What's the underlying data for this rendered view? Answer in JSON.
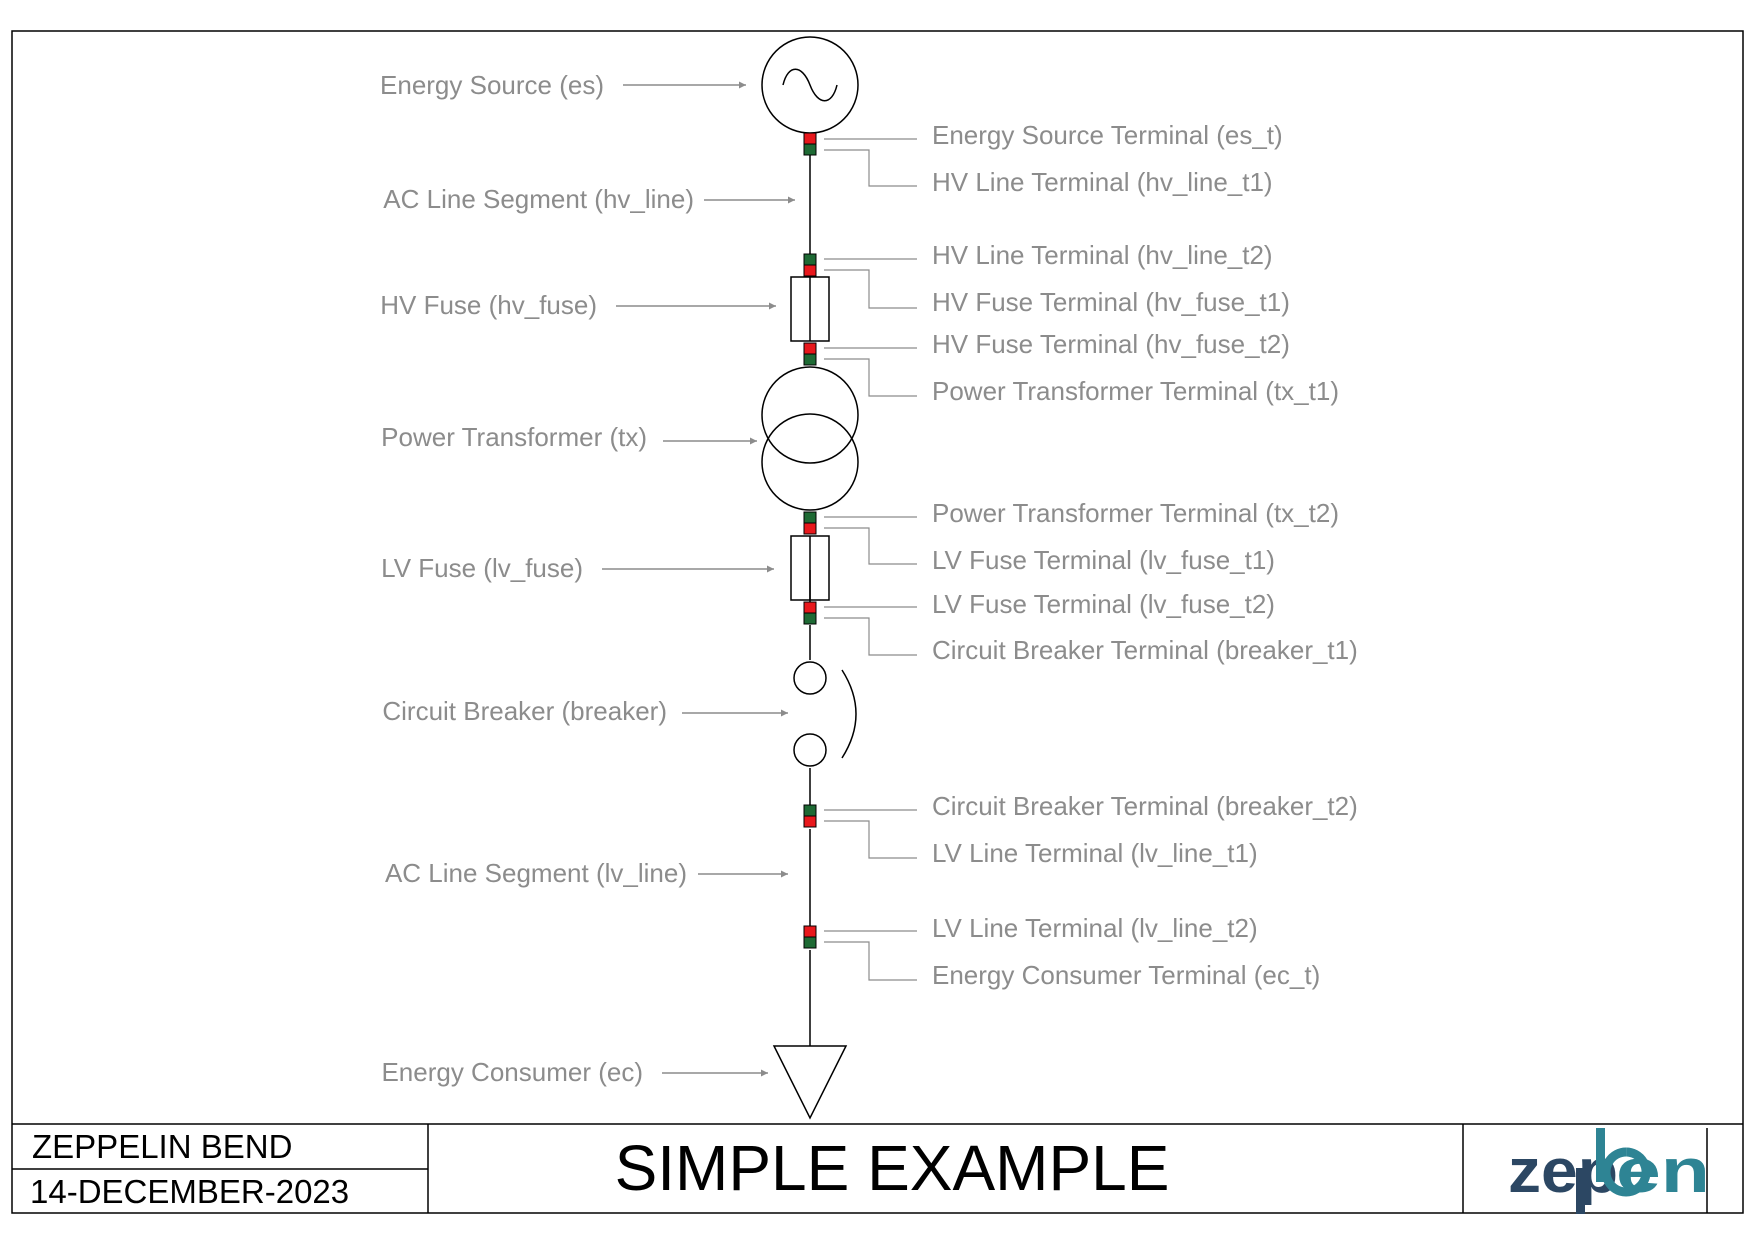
{
  "diagram": {
    "components": [
      {
        "id": "es",
        "label": "Energy Source (es)"
      },
      {
        "id": "hv_line",
        "label": "AC Line Segment (hv_line)"
      },
      {
        "id": "hv_fuse",
        "label": "HV Fuse (hv_fuse)"
      },
      {
        "id": "tx",
        "label": "Power Transformer (tx)"
      },
      {
        "id": "lv_fuse",
        "label": "LV Fuse (lv_fuse)"
      },
      {
        "id": "breaker",
        "label": "Circuit Breaker (breaker)"
      },
      {
        "id": "lv_line",
        "label": "AC Line Segment (lv_line)"
      },
      {
        "id": "ec",
        "label": "Energy Consumer (ec)"
      }
    ],
    "terminals": [
      {
        "id": "es_t",
        "label": "Energy Source Terminal (es_t)"
      },
      {
        "id": "hv_line_t1",
        "label": "HV Line Terminal (hv_line_t1)"
      },
      {
        "id": "hv_line_t2",
        "label": "HV Line Terminal (hv_line_t2)"
      },
      {
        "id": "hv_fuse_t1",
        "label": "HV Fuse Terminal (hv_fuse_t1)"
      },
      {
        "id": "hv_fuse_t2",
        "label": "HV Fuse Terminal (hv_fuse_t2)"
      },
      {
        "id": "tx_t1",
        "label": "Power Transformer Terminal (tx_t1)"
      },
      {
        "id": "tx_t2",
        "label": "Power Transformer Terminal (tx_t2)"
      },
      {
        "id": "lv_fuse_t1",
        "label": "LV Fuse Terminal (lv_fuse_t1)"
      },
      {
        "id": "lv_fuse_t2",
        "label": "LV Fuse Terminal (lv_fuse_t2)"
      },
      {
        "id": "breaker_t1",
        "label": "Circuit Breaker Terminal (breaker_t1)"
      },
      {
        "id": "breaker_t2",
        "label": "Circuit Breaker Terminal (breaker_t2)"
      },
      {
        "id": "lv_line_t1",
        "label": "LV Line Terminal (lv_line_t1)"
      },
      {
        "id": "lv_line_t2",
        "label": "LV Line Terminal (lv_line_t2)"
      },
      {
        "id": "ec_t",
        "label": "Energy Consumer Terminal (ec_t)"
      }
    ]
  },
  "title_block": {
    "project": "ZEPPELIN BEND",
    "date": "14-DECEMBER-2023",
    "title": "SIMPLE EXAMPLE",
    "logo_text": "zepben"
  },
  "colors": {
    "label_text": "#8c8c8c",
    "arrow": "#8c8c8c",
    "line": "#000000",
    "terminal_red": "#e8181c",
    "terminal_green": "#1e6a34",
    "logo_dark": "#2c4763",
    "logo_teal": "#2e8494"
  }
}
